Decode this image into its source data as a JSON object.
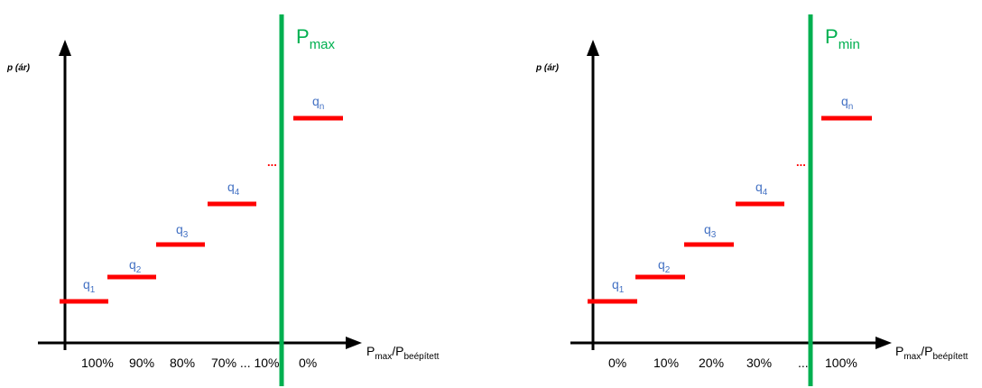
{
  "colors": {
    "axis": "#000000",
    "step": "#ff0000",
    "limit_line": "#00b050",
    "q_label": "#4472c4"
  },
  "panels": [
    {
      "y_axis_label": "p (ár)",
      "x_axis_label": {
        "main": "P",
        "sub1": "max",
        "slash": "/P",
        "sub2": "beépített"
      },
      "limit": {
        "main": "P",
        "sub": "max"
      },
      "steps": [
        {
          "main": "q",
          "sub": "1"
        },
        {
          "main": "q",
          "sub": "2"
        },
        {
          "main": "q",
          "sub": "3"
        },
        {
          "main": "q",
          "sub": "4"
        },
        {
          "main": "q",
          "sub": "n"
        }
      ],
      "dots": "...",
      "ticks": [
        "100%",
        "90%",
        "80%",
        "70% ... 10%",
        "0%"
      ]
    },
    {
      "y_axis_label": "p (ár)",
      "x_axis_label": {
        "main": "P",
        "sub1": "max",
        "slash": "/P",
        "sub2": "beépített"
      },
      "limit": {
        "main": "P",
        "sub": "min"
      },
      "steps": [
        {
          "main": "q",
          "sub": "1"
        },
        {
          "main": "q",
          "sub": "2"
        },
        {
          "main": "q",
          "sub": "3"
        },
        {
          "main": "q",
          "sub": "4"
        },
        {
          "main": "q",
          "sub": "n"
        }
      ],
      "dots": "...",
      "ticks": [
        "0%",
        "10%",
        "20%",
        "30%",
        "...",
        "100%"
      ]
    }
  ]
}
